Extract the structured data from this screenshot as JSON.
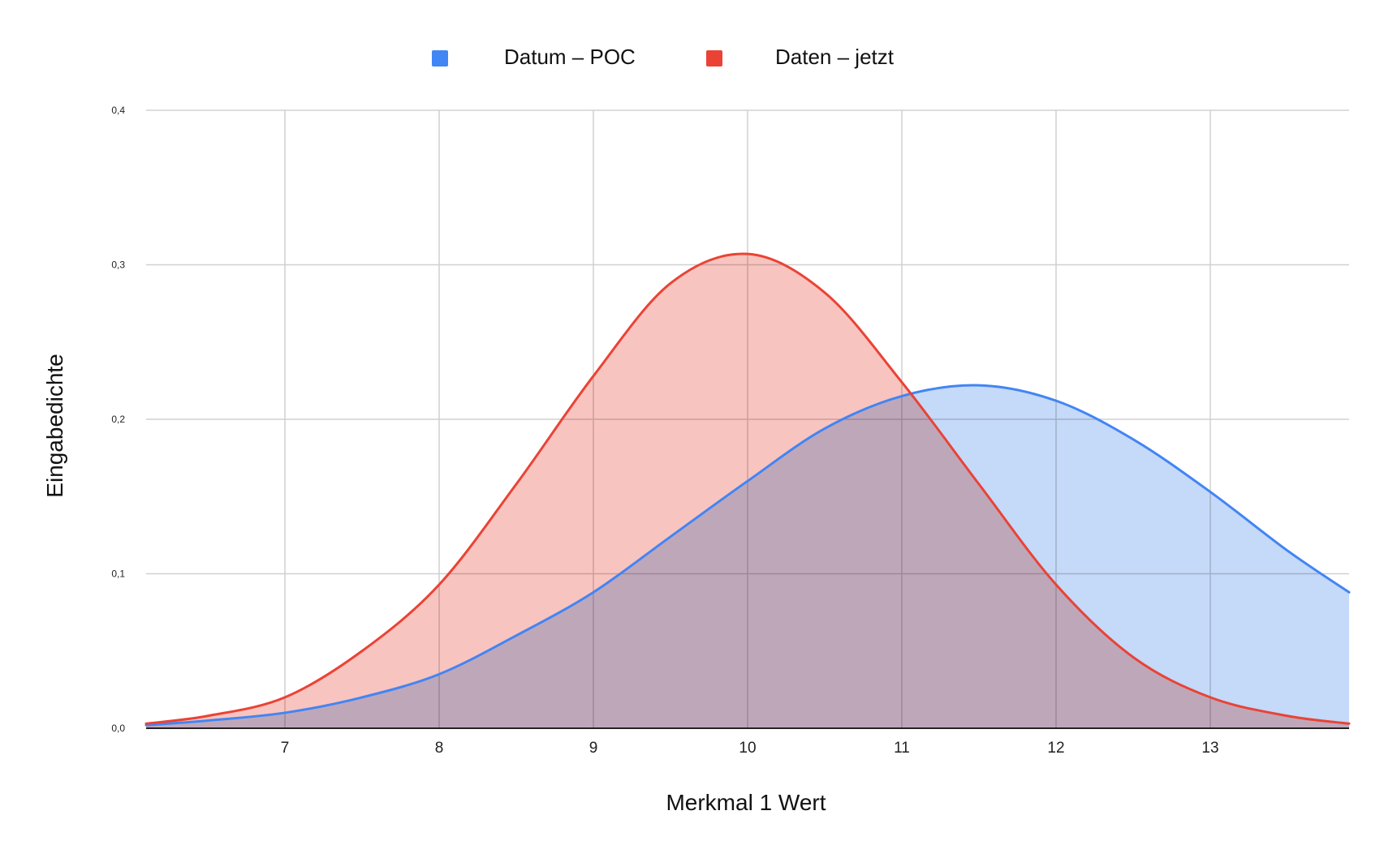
{
  "chart_data": {
    "type": "area",
    "title": "",
    "xlabel": "Merkmal 1 Wert",
    "ylabel": "Eingabedichte",
    "xlim": [
      6.1,
      13.9
    ],
    "ylim": [
      0,
      0.4
    ],
    "x_ticks": [
      7,
      8,
      9,
      10,
      11,
      12,
      13
    ],
    "x_tick_labels": [
      "7",
      "8",
      "9",
      "10",
      "11",
      "12",
      "13"
    ],
    "y_ticks": [
      0,
      0.1,
      0.2,
      0.3,
      0.4
    ],
    "y_tick_labels": [
      "0,0",
      "0,1",
      "0,2",
      "0,3",
      "0,4"
    ],
    "grid": true,
    "legend_position": "top-center",
    "series": [
      {
        "name": "Datum – POC",
        "color": "#4285F4",
        "fill": "#C5D9F8",
        "x": [
          6.1,
          6.5,
          7.0,
          7.5,
          8.0,
          8.5,
          9.0,
          9.5,
          10.0,
          10.5,
          11.0,
          11.5,
          12.0,
          12.5,
          13.0,
          13.5,
          13.9
        ],
        "y": [
          0.002,
          0.005,
          0.01,
          0.02,
          0.035,
          0.06,
          0.088,
          0.124,
          0.16,
          0.194,
          0.215,
          0.222,
          0.212,
          0.187,
          0.153,
          0.115,
          0.088
        ]
      },
      {
        "name": "Daten – jetzt",
        "color": "#EA4335",
        "fill": "#F8C4C0",
        "x": [
          6.1,
          6.5,
          7.0,
          7.5,
          8.0,
          8.5,
          9.0,
          9.5,
          10.0,
          10.5,
          11.0,
          11.5,
          12.0,
          12.5,
          13.0,
          13.5,
          13.9
        ],
        "y": [
          0.003,
          0.008,
          0.02,
          0.05,
          0.093,
          0.158,
          0.228,
          0.288,
          0.307,
          0.282,
          0.224,
          0.158,
          0.093,
          0.046,
          0.02,
          0.008,
          0.003
        ]
      }
    ]
  },
  "legend": {
    "items": [
      {
        "label": "Datum – POC",
        "color": "#4285F4",
        "icon": "square-swatch"
      },
      {
        "label": "Daten – jetzt",
        "color": "#EA4335",
        "icon": "square-swatch"
      }
    ]
  },
  "colors": {
    "grid": "#D0D0D0",
    "axis": "#222222",
    "overlap": "#D1ABC1"
  }
}
